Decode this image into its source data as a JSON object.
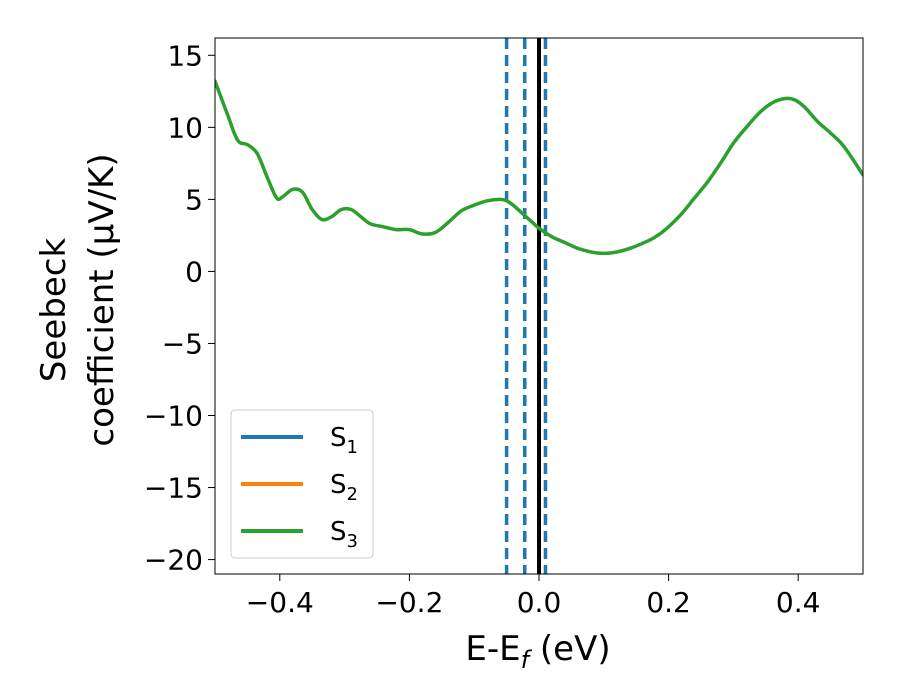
{
  "chart_data": {
    "type": "line",
    "xlabel": "E-E",
    "xlabel_sub": "f",
    "xlabel_unit": " (eV)",
    "ylabel_line1": "Seebeck",
    "ylabel_line2": "coefficient  (μV/K)",
    "xlim": [
      -0.5,
      0.5
    ],
    "ylim": [
      -21,
      16.2
    ],
    "x_ticks": [
      -0.4,
      -0.2,
      0.0,
      0.2,
      0.4
    ],
    "x_tick_labels": [
      "−0.4",
      "−0.2",
      "0.0",
      "0.2",
      "0.4"
    ],
    "y_ticks": [
      15,
      10,
      5,
      0,
      -5,
      -10,
      -15,
      -20
    ],
    "y_tick_labels": [
      "15",
      "10",
      "5",
      "0",
      "−5",
      "−10",
      "−15",
      "−20"
    ],
    "grid": false,
    "legend_placement": "lower-left",
    "series": [
      {
        "name": "S",
        "sub": "1",
        "color": "#1f77b4",
        "x": [],
        "y": []
      },
      {
        "name": "S",
        "sub": "2",
        "color": "#ff7f0e",
        "x": [],
        "y": []
      },
      {
        "name": "S",
        "sub": "3",
        "color": "#2ca02c",
        "x": [
          -0.5,
          -0.48,
          -0.465,
          -0.45,
          -0.435,
          -0.42,
          -0.405,
          -0.395,
          -0.38,
          -0.365,
          -0.35,
          -0.335,
          -0.32,
          -0.305,
          -0.29,
          -0.275,
          -0.26,
          -0.24,
          -0.22,
          -0.2,
          -0.18,
          -0.16,
          -0.14,
          -0.12,
          -0.1,
          -0.08,
          -0.06,
          -0.05,
          -0.04,
          -0.025,
          -0.01,
          0.0,
          0.02,
          0.04,
          0.06,
          0.08,
          0.1,
          0.12,
          0.14,
          0.16,
          0.18,
          0.2,
          0.22,
          0.24,
          0.26,
          0.28,
          0.3,
          0.32,
          0.34,
          0.36,
          0.38,
          0.395,
          0.41,
          0.43,
          0.45,
          0.47,
          0.5
        ],
        "y": [
          13.2,
          10.8,
          9.1,
          8.8,
          8.2,
          6.6,
          5.1,
          5.2,
          5.7,
          5.5,
          4.3,
          3.6,
          3.8,
          4.3,
          4.3,
          3.8,
          3.3,
          3.1,
          2.9,
          2.9,
          2.6,
          2.7,
          3.4,
          4.2,
          4.6,
          4.9,
          5.0,
          4.9,
          4.6,
          4.0,
          3.4,
          3.0,
          2.4,
          2.0,
          1.6,
          1.35,
          1.25,
          1.35,
          1.6,
          1.95,
          2.4,
          3.1,
          4.0,
          5.1,
          6.2,
          7.5,
          8.9,
          10.0,
          11.0,
          11.7,
          12.0,
          11.9,
          11.4,
          10.4,
          9.6,
          8.7,
          6.7
        ],
        "linewidth": 3.5
      }
    ],
    "vlines": [
      {
        "x": -0.05,
        "style": "dashed",
        "color": "#1f77b4"
      },
      {
        "x": -0.022,
        "style": "dashed",
        "color": "#1f77b4"
      },
      {
        "x": 0.0,
        "style": "solid",
        "color": "#000000"
      },
      {
        "x": 0.01,
        "style": "dashed",
        "color": "#1f77b4"
      }
    ]
  }
}
